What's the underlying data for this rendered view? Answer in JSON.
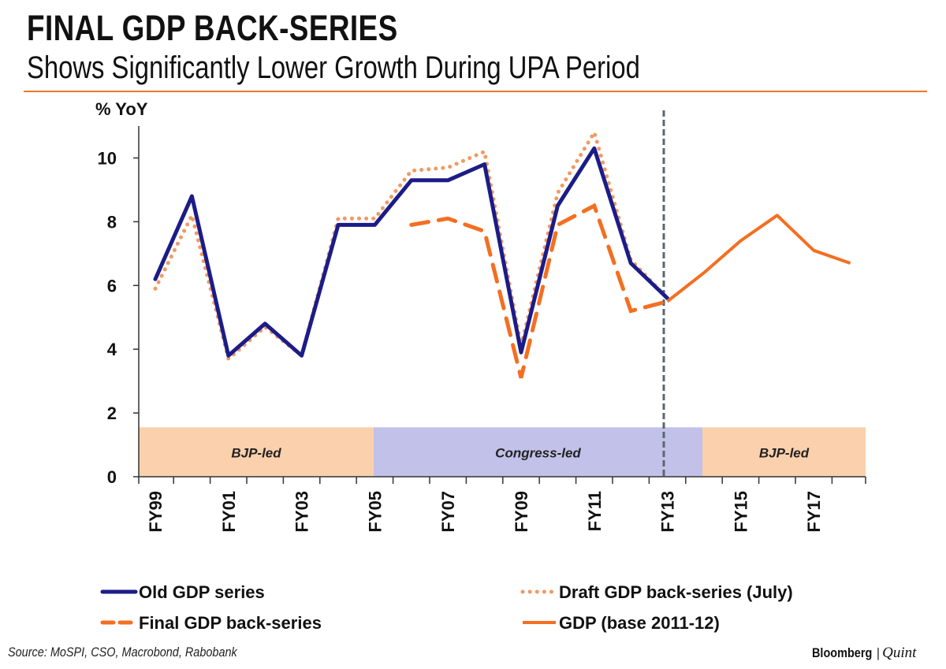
{
  "header": {
    "title": "FINAL GDP BACK-SERIES",
    "subtitle": "Shows Significantly Lower Growth During UPA Period"
  },
  "footer": {
    "source": "Source: MoSPI, CSO, Macrobond, Rabobank",
    "brand_primary": "Bloomberg",
    "brand_separator": "|",
    "brand_secondary": "Quint"
  },
  "colors": {
    "accent": "#e87a2c",
    "old_series": "#1c1c88",
    "final_series": "#f36f21",
    "draft_series": "#f19a62",
    "bjp_band": "#fbd0ac",
    "congress_band": "#c1c1e9",
    "divider": "#5d6670"
  },
  "chart_data": {
    "type": "line",
    "title": "FINAL GDP BACK-SERIES",
    "subtitle": "Shows Significantly Lower Growth During UPA Period",
    "ylabel": "% YoY",
    "xlabel": "",
    "ylim": [
      0,
      11
    ],
    "yticks": [
      0,
      2,
      4,
      6,
      8,
      10
    ],
    "grid": false,
    "legend_position": "bottom",
    "categories": [
      "FY99",
      "FY00",
      "FY01",
      "FY02",
      "FY03",
      "FY04",
      "FY05",
      "FY06",
      "FY07",
      "FY08",
      "FY09",
      "FY10",
      "FY11",
      "FY12",
      "FY13",
      "FY14",
      "FY15",
      "FY16",
      "FY17",
      "FY18"
    ],
    "tick_labels": [
      "FY99",
      "FY01",
      "FY03",
      "FY05",
      "FY07",
      "FY09",
      "FY11",
      "FY13",
      "FY15",
      "FY17"
    ],
    "series": [
      {
        "name": "Old GDP series",
        "style": "solid-thick",
        "color": "#1c1c88",
        "values": [
          6.2,
          8.8,
          3.8,
          4.8,
          3.8,
          7.9,
          7.9,
          9.3,
          9.3,
          9.8,
          3.9,
          8.5,
          10.3,
          6.7,
          5.6,
          null,
          null,
          null,
          null,
          null
        ]
      },
      {
        "name": "Draft GDP back-series (July)",
        "style": "dotted",
        "color": "#f19a62",
        "values": [
          5.9,
          8.2,
          3.7,
          4.7,
          3.8,
          8.1,
          8.1,
          9.6,
          9.7,
          10.2,
          4.1,
          8.9,
          10.8,
          6.8,
          5.6,
          null,
          null,
          null,
          null,
          null
        ]
      },
      {
        "name": "Final GDP back-series",
        "style": "dashed",
        "color": "#f36f21",
        "values": [
          null,
          null,
          null,
          null,
          null,
          null,
          null,
          7.9,
          8.1,
          7.7,
          3.1,
          7.9,
          8.5,
          5.2,
          5.5,
          null,
          null,
          null,
          null,
          null
        ]
      },
      {
        "name": "GDP (base 2011-12)",
        "style": "solid",
        "color": "#f36f21",
        "values": [
          null,
          null,
          null,
          null,
          null,
          null,
          null,
          null,
          null,
          null,
          null,
          null,
          null,
          null,
          5.5,
          6.4,
          7.4,
          8.2,
          7.1,
          6.7
        ]
      }
    ],
    "bands": [
      {
        "label": "BJP-led",
        "color": "#fbd0ac",
        "start": "FY99",
        "end": "FY05",
        "y_to": 1.55
      },
      {
        "label": "Congress-led",
        "color": "#c1c1e9",
        "start": "FY05",
        "end": "FY14",
        "y_to": 1.55
      },
      {
        "label": "BJP-led",
        "color": "#fbd0ac",
        "start": "FY14",
        "end": "FY18",
        "y_to": 1.55
      }
    ],
    "vertical_line": {
      "at": "FY13",
      "style": "dashed"
    },
    "legend": [
      "Old GDP series",
      "Draft GDP back-series (July)",
      "Final GDP back-series",
      "GDP (base 2011-12)"
    ]
  }
}
